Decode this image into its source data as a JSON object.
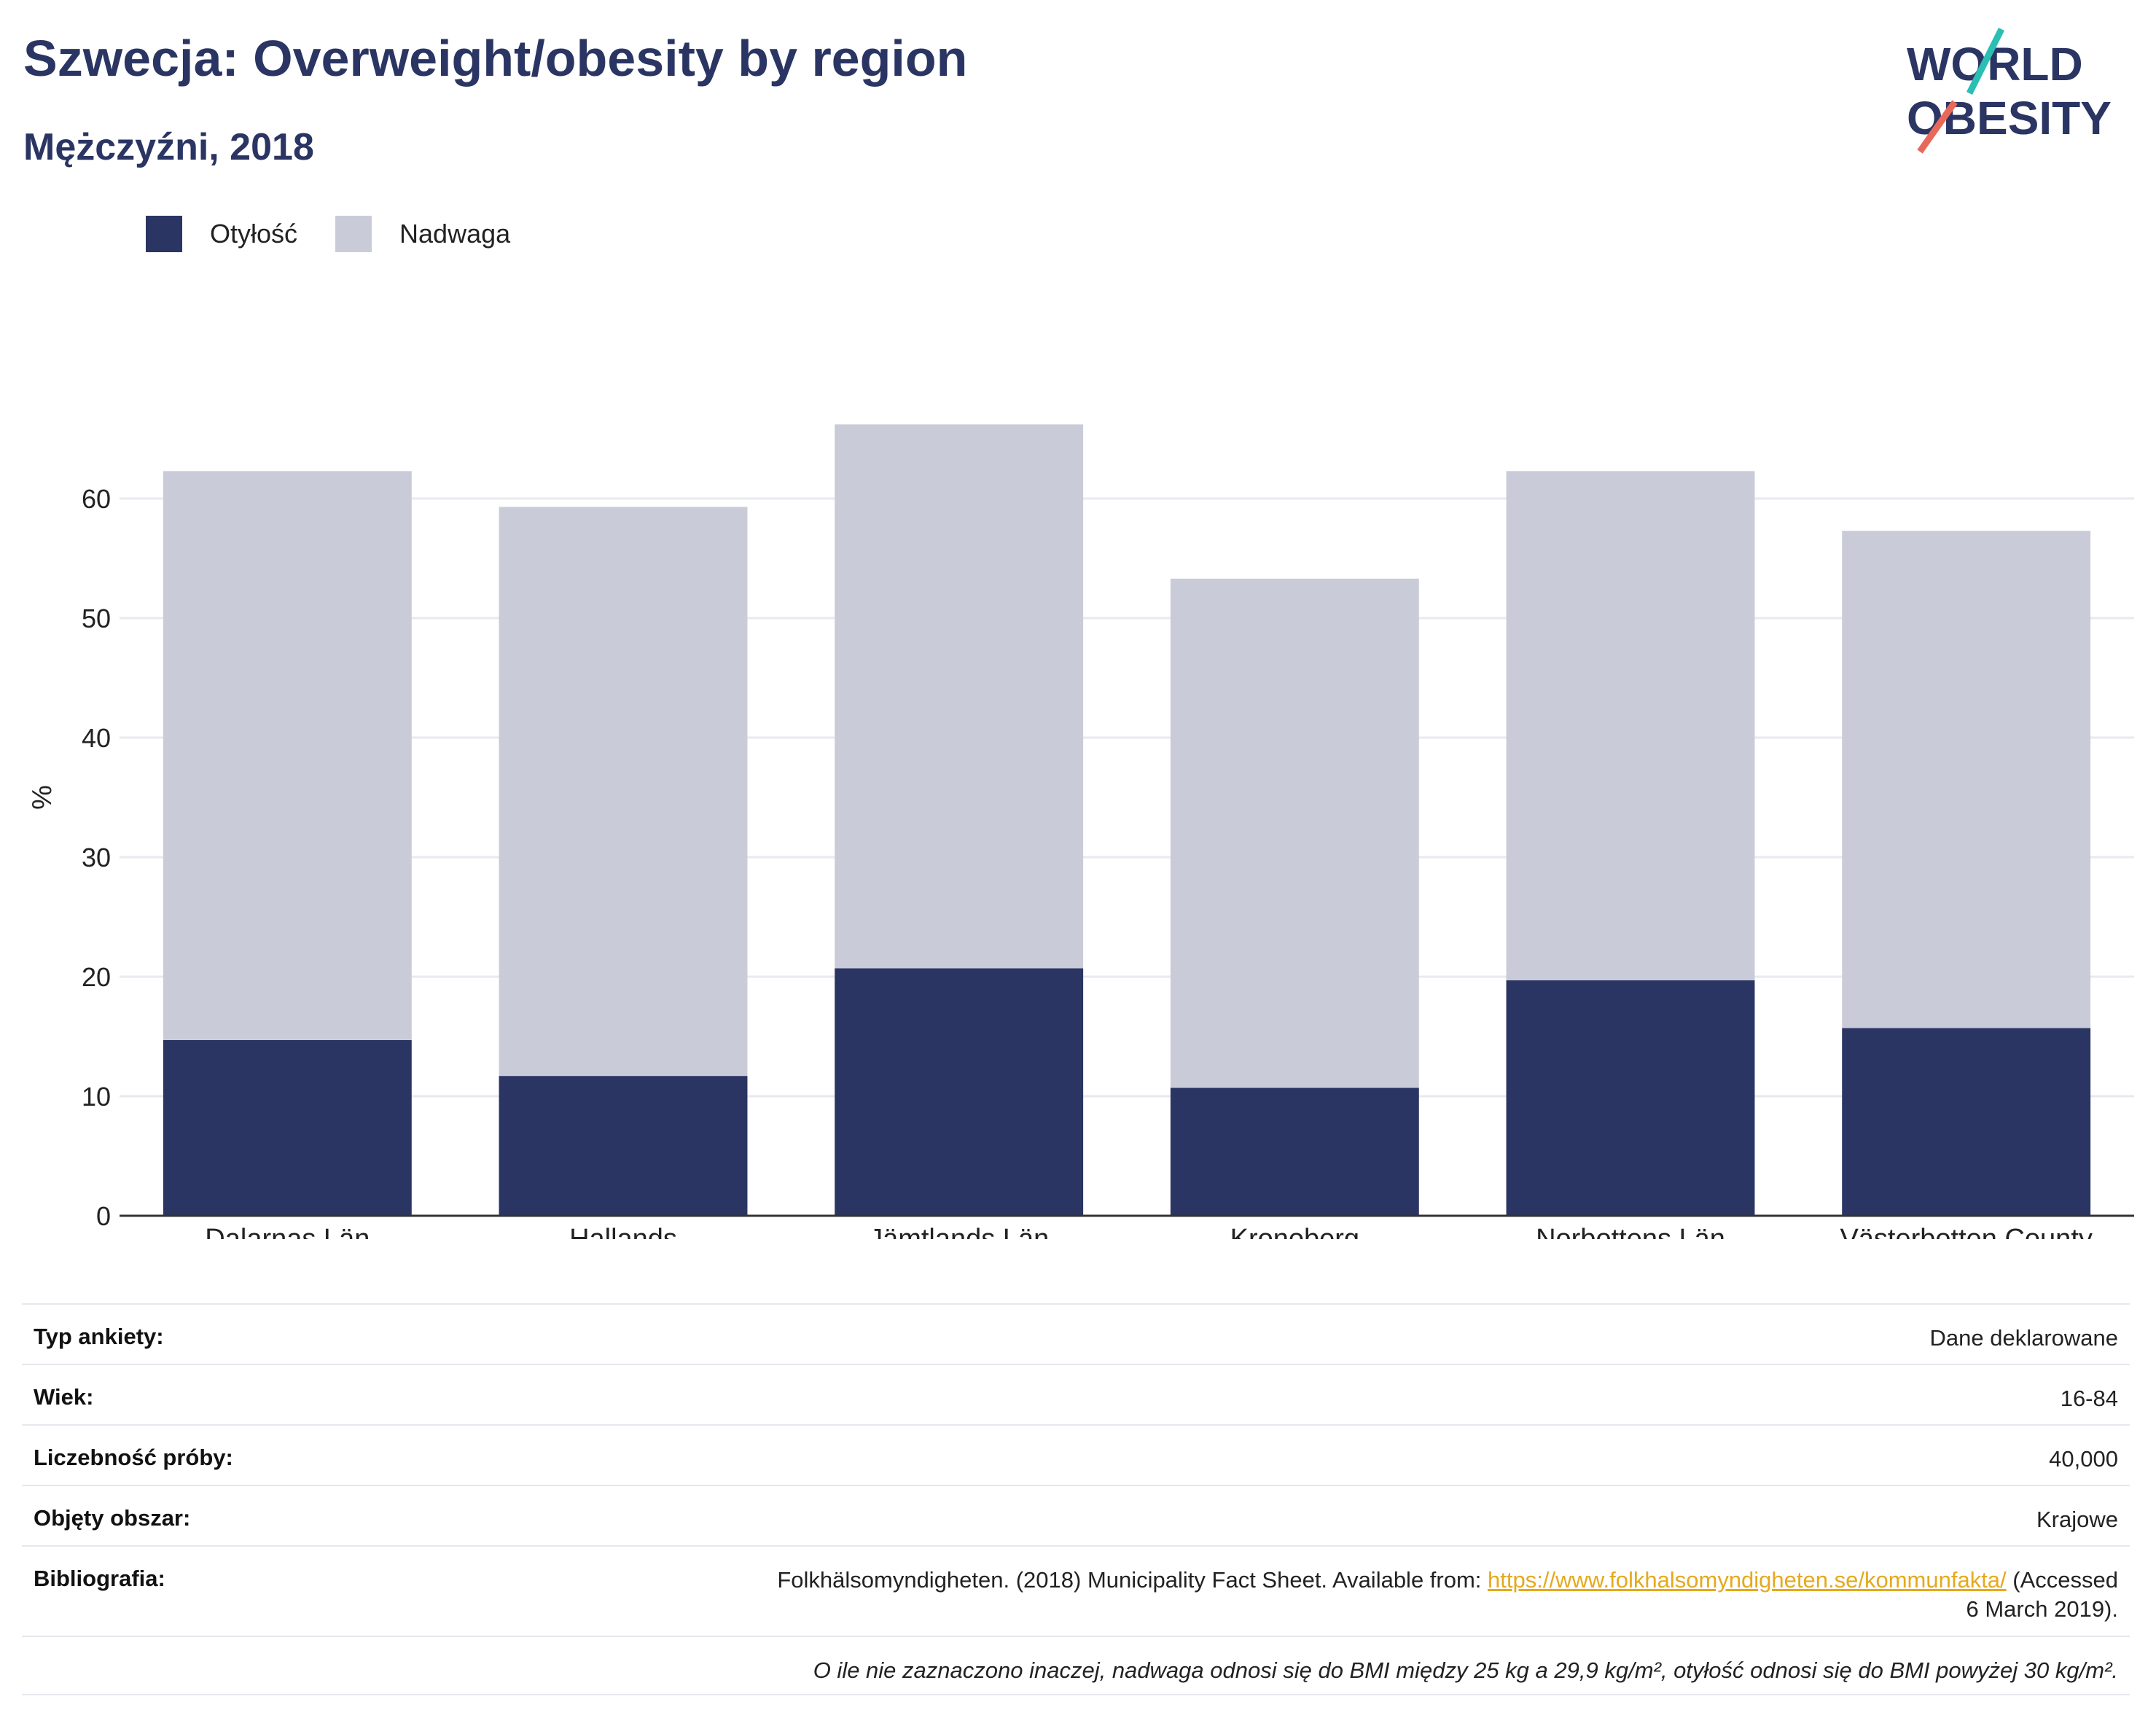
{
  "header": {
    "title": "Szwecja: Overweight/obesity by region",
    "subtitle": "Mężczyźni, 2018"
  },
  "logo": {
    "line1": "WORLD",
    "line2": "OBESITY",
    "accent_teal": "#2bbfb3",
    "accent_coral": "#e8695a",
    "color": "#2a3563"
  },
  "legend": [
    {
      "label": "Otyłość",
      "color": "#2a3563"
    },
    {
      "label": "Nadwaga",
      "color": "#c9ccd8"
    }
  ],
  "chart_data": {
    "type": "bar",
    "stacked": true,
    "categories": [
      "Dalarnas Län",
      "Hallands",
      "Jämtlands Län",
      "Kronoberg",
      "Norbottens Län",
      "Västerbotten County"
    ],
    "series": [
      {
        "name": "Otyłość",
        "color": "#2a3563",
        "values": [
          14.7,
          11.7,
          20.7,
          10.7,
          19.7,
          15.7
        ]
      },
      {
        "name": "Nadwaga",
        "color": "#c9ccd8",
        "values": [
          47.6,
          47.6,
          45.5,
          42.6,
          42.6,
          41.6
        ]
      }
    ],
    "ylabel": "%",
    "ylim": [
      0,
      70
    ],
    "yticks": [
      0,
      10,
      20,
      30,
      40,
      50,
      60
    ],
    "grid": true,
    "legend_position": "top-left"
  },
  "info": {
    "survey_type": {
      "label": "Typ ankiety:",
      "value": "Dane deklarowane"
    },
    "age": {
      "label": "Wiek:",
      "value": "16-84"
    },
    "sample_size": {
      "label": "Liczebność próby:",
      "value": "40,000"
    },
    "area": {
      "label": "Objęty obszar:",
      "value": "Krajowe"
    },
    "bibliography": {
      "label": "Bibliografia:",
      "text_before": "Folkhälsomyndigheten. (2018) Municipality Fact Sheet. Available from: ",
      "link": "https://www.folkhalsomyndigheten.se/kommunfakta/",
      "text_after": " (Accessed",
      "text_line2": "6 March 2019)."
    },
    "note": "O ile nie zaznaczono inaczej, nadwaga odnosi się do BMI między 25 kg a 29,9 kg/m², otyłość odnosi się do BMI powyżej 30 kg/m²."
  }
}
